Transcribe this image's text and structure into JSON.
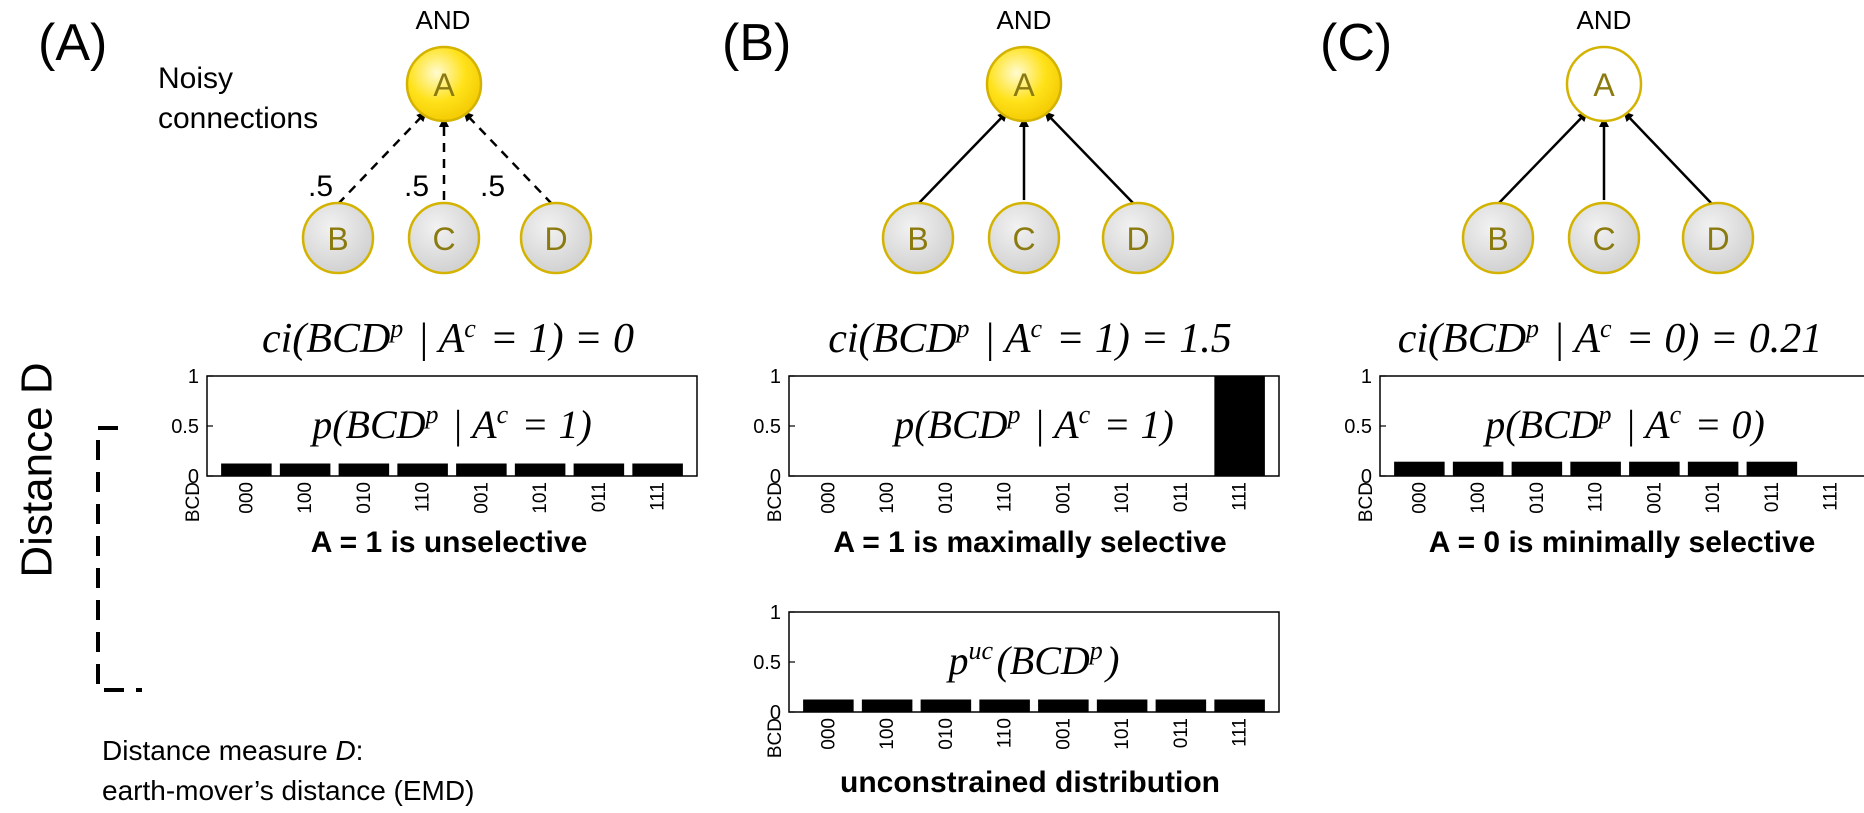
{
  "panels": [
    {
      "id": "A",
      "label": "(A)",
      "gate": "AND",
      "side_note": [
        "Noisy",
        "connections"
      ],
      "top_node": "A",
      "top_active": true,
      "inputs": [
        "B",
        "C",
        "D"
      ],
      "connection": "dashed",
      "weights": [
        ".5",
        ".5",
        ".5"
      ],
      "formula": "ci(BCD^p | A^c = 1) = 0",
      "chart": {
        "formula": "p(BCD^p | A^c = 1)",
        "caption": "A = 1 is unselective"
      }
    },
    {
      "id": "B",
      "label": "(B)",
      "gate": "AND",
      "side_note": [],
      "top_node": "A",
      "top_active": true,
      "inputs": [
        "B",
        "C",
        "D"
      ],
      "connection": "solid",
      "weights": [],
      "formula": "ci(BCD^p | A^c = 1) = 1.5",
      "chart": {
        "formula": "p(BCD^p | A^c = 1)",
        "caption": "A = 1 is maximally selective"
      },
      "chart2": {
        "formula": "p^uc(BCD^p)",
        "caption": "unconstrained distribution"
      }
    },
    {
      "id": "C",
      "label": "(C)",
      "gate": "AND",
      "side_note": [],
      "top_node": "A",
      "top_active": false,
      "inputs": [
        "B",
        "C",
        "D"
      ],
      "connection": "solid",
      "weights": [],
      "formula": "ci(BCD^p | A^c = 0) = 0.21",
      "chart": {
        "formula": "p(BCD^p | A^c = 0)",
        "caption": "A = 0 is minimally selective"
      }
    }
  ],
  "chart_data": [
    {
      "type": "bar",
      "categories": [
        "000",
        "100",
        "010",
        "110",
        "001",
        "101",
        "011",
        "111"
      ],
      "axis_label": "BCD",
      "values": [
        0.125,
        0.125,
        0.125,
        0.125,
        0.125,
        0.125,
        0.125,
        0.125
      ],
      "ylim": [
        0,
        1
      ],
      "yticks": [
        "0",
        "0.5",
        "1"
      ],
      "title": "p(BCD^p | A^c = 1)",
      "xlabel": "A = 1 is unselective"
    },
    {
      "type": "bar",
      "categories": [
        "000",
        "100",
        "010",
        "110",
        "001",
        "101",
        "011",
        "111"
      ],
      "axis_label": "BCD",
      "values": [
        0,
        0,
        0,
        0,
        0,
        0,
        0,
        1
      ],
      "ylim": [
        0,
        1
      ],
      "yticks": [
        "0",
        "0.5",
        "1"
      ],
      "title": "p(BCD^p | A^c = 1)",
      "xlabel": "A = 1 is maximally selective"
    },
    {
      "type": "bar",
      "categories": [
        "000",
        "100",
        "010",
        "110",
        "001",
        "101",
        "011",
        "111"
      ],
      "axis_label": "BCD",
      "values": [
        0.143,
        0.143,
        0.143,
        0.143,
        0.143,
        0.143,
        0.143,
        0
      ],
      "ylim": [
        0,
        1
      ],
      "yticks": [
        "0",
        "0.5",
        "1"
      ],
      "title": "p(BCD^p | A^c = 0)",
      "xlabel": "A = 0 is minimally selective"
    },
    {
      "type": "bar",
      "categories": [
        "000",
        "100",
        "010",
        "110",
        "001",
        "101",
        "011",
        "111"
      ],
      "axis_label": "BCD",
      "values": [
        0.125,
        0.125,
        0.125,
        0.125,
        0.125,
        0.125,
        0.125,
        0.125
      ],
      "ylim": [
        0,
        1
      ],
      "yticks": [
        "0",
        "0.5",
        "1"
      ],
      "title": "p^uc(BCD^p)",
      "xlabel": "unconstrained distribution"
    }
  ],
  "distance": {
    "label": "Distance D",
    "note_line1_prefix": "Distance measure ",
    "note_line1_var": "D",
    "note_line1_suffix": ":",
    "note_line2": "earth-mover’s distance (EMD)"
  },
  "colors": {
    "node_active": "#f5d400",
    "node_active_center": "#fff6a0",
    "node_inactive": "#ffffff",
    "node_input": "#d9d9d9",
    "node_stroke": "#d4b300",
    "node_text": "#8a7a10",
    "bar": "#000000"
  }
}
